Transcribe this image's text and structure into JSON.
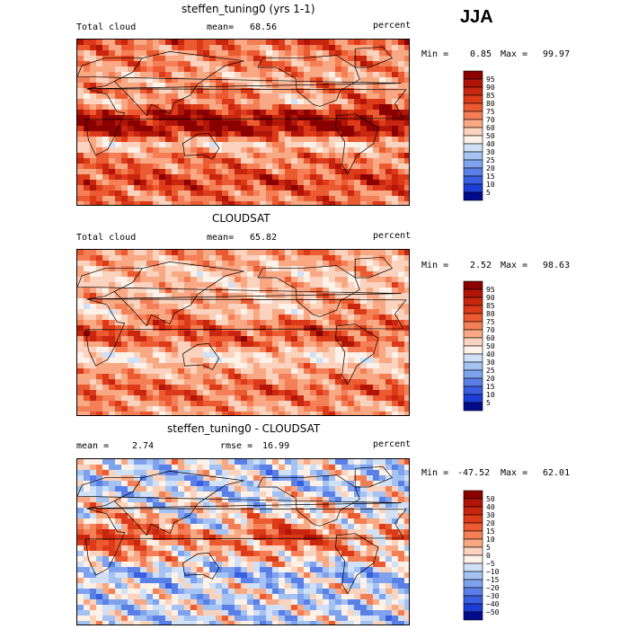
{
  "season_label": "JJA",
  "panels": [
    {
      "title": "steffen_tuning0 (yrs 1-1)",
      "field": "Total cloud",
      "stat_label": "mean=",
      "stat_value": "68.56",
      "stat2_label": "",
      "stat2_value": "",
      "units": "percent",
      "min_label": "Min =",
      "min_value": "0.85",
      "max_label": "Max =",
      "max_value": "99.97"
    },
    {
      "title": "CLOUDSAT",
      "field": "Total cloud",
      "stat_label": "mean=",
      "stat_value": "65.82",
      "stat2_label": "",
      "stat2_value": "",
      "units": "percent",
      "min_label": "Min =",
      "min_value": "2.52",
      "max_label": "Max =",
      "max_value": "98.63"
    },
    {
      "title": "steffen_tuning0 - CLOUDSAT",
      "field": "",
      "stat_label": "mean =",
      "stat_value": "2.74",
      "stat2_label": "rmse =",
      "stat2_value": "16.99",
      "units": "percent",
      "min_label": "Min =",
      "min_value": "-47.52",
      "max_label": "Max =",
      "max_value": "62.01"
    }
  ],
  "chart_data": [
    {
      "type": "heatmap",
      "title": "steffen_tuning0 (yrs 1-1)",
      "field": "Total cloud",
      "units": "percent",
      "mean": 68.56,
      "min": 0.85,
      "max": 99.97,
      "colorbar_levels": [
        95,
        90,
        85,
        80,
        75,
        70,
        60,
        50,
        40,
        30,
        25,
        20,
        15,
        10,
        5
      ],
      "colorbar_colors": [
        "#8b0000",
        "#b01508",
        "#c8260e",
        "#dc3a18",
        "#eb5a30",
        "#f47f56",
        "#f9a884",
        "#fbd2bd",
        "#fdf1e8",
        "#cfe0f7",
        "#a4c2f2",
        "#7ea2ee",
        "#5a80e8",
        "#3a5ee0",
        "#1c3dd6",
        "#000c8c"
      ]
    },
    {
      "type": "heatmap",
      "title": "CLOUDSAT",
      "field": "Total cloud",
      "units": "percent",
      "mean": 65.82,
      "min": 2.52,
      "max": 98.63,
      "colorbar_levels": [
        95,
        90,
        85,
        80,
        75,
        70,
        60,
        50,
        40,
        30,
        25,
        20,
        15,
        10,
        5
      ],
      "colorbar_colors": [
        "#8b0000",
        "#b01508",
        "#c8260e",
        "#dc3a18",
        "#eb5a30",
        "#f47f56",
        "#f9a884",
        "#fbd2bd",
        "#fdf1e8",
        "#cfe0f7",
        "#a4c2f2",
        "#7ea2ee",
        "#5a80e8",
        "#3a5ee0",
        "#1c3dd6",
        "#000c8c"
      ]
    },
    {
      "type": "heatmap",
      "title": "steffen_tuning0 - CLOUDSAT",
      "units": "percent",
      "mean": 2.74,
      "rmse": 16.99,
      "min": -47.52,
      "max": 62.01,
      "colorbar_levels": [
        50,
        40,
        30,
        20,
        15,
        10,
        5,
        0,
        -5,
        -10,
        -15,
        -20,
        -30,
        -40,
        -50
      ],
      "colorbar_colors": [
        "#8b0000",
        "#b01508",
        "#c8260e",
        "#dc3a18",
        "#eb5a30",
        "#f47f56",
        "#f9a884",
        "#fbd2bd",
        "#fdf1e8",
        "#cfe0f7",
        "#a4c2f2",
        "#7ea2ee",
        "#5a80e8",
        "#3a5ee0",
        "#1c3dd6",
        "#000c8c"
      ]
    }
  ]
}
